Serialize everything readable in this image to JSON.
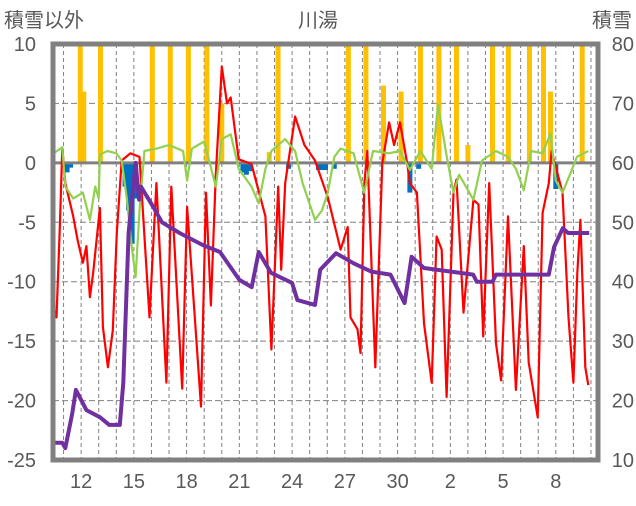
{
  "chart_data": {
    "type": "line",
    "title": "川湯",
    "left_axis_label": "積雪以外",
    "right_axis_label": "積雪",
    "x_range_days": [
      10.4,
      41.4
    ],
    "x_ticks": [
      {
        "day": 12,
        "label": "12"
      },
      {
        "day": 15,
        "label": "15"
      },
      {
        "day": 18,
        "label": "18"
      },
      {
        "day": 21,
        "label": "21"
      },
      {
        "day": 24,
        "label": "24"
      },
      {
        "day": 27,
        "label": "27"
      },
      {
        "day": 30,
        "label": "30"
      },
      {
        "day": 33,
        "label": "2"
      },
      {
        "day": 36,
        "label": "5"
      },
      {
        "day": 39,
        "label": "8"
      }
    ],
    "left_ylim": [
      -25,
      10
    ],
    "left_ticks": [
      "10",
      "5",
      "0",
      "-5",
      "-10",
      "-15",
      "-20",
      "-25"
    ],
    "right_ylim": [
      10,
      80
    ],
    "right_ticks": [
      "80",
      "70",
      "60",
      "50",
      "40",
      "30",
      "20",
      "10"
    ],
    "grid": true,
    "colors": {
      "red": "#ff0000",
      "green": "#92d050",
      "purple": "#7030a0",
      "orange": "#ffc000",
      "blue": "#0070c0",
      "frame": "#808080"
    },
    "series": [
      {
        "name": "red-line",
        "axis": "left",
        "color": "#ff0000",
        "points": [
          [
            10.42,
            -12.1
          ],
          [
            10.6,
            -13
          ],
          [
            10.8,
            -5
          ],
          [
            10.93,
            1.3
          ],
          [
            11.1,
            -1.7
          ],
          [
            11.55,
            -4.5
          ],
          [
            11.8,
            -6.5
          ],
          [
            12.1,
            -8.4
          ],
          [
            12.3,
            -7
          ],
          [
            12.5,
            -11.3
          ],
          [
            12.68,
            -9.3
          ],
          [
            13.07,
            -3.8
          ],
          [
            13.24,
            -13.8
          ],
          [
            13.52,
            -17.2
          ],
          [
            13.8,
            -14.1
          ],
          [
            14.03,
            -5.9
          ],
          [
            14.31,
            0.2
          ],
          [
            14.8,
            0.8
          ],
          [
            15.32,
            0.5
          ],
          [
            15.89,
            -13
          ],
          [
            16.28,
            -1.7
          ],
          [
            16.85,
            -18.5
          ],
          [
            17.13,
            -2
          ],
          [
            17.75,
            -19
          ],
          [
            18.03,
            -3.7
          ],
          [
            18.82,
            -20.5
          ],
          [
            19.1,
            -2.5
          ],
          [
            19.38,
            -12
          ],
          [
            19.66,
            -1
          ],
          [
            20.0,
            8.1
          ],
          [
            20.3,
            5
          ],
          [
            20.51,
            5.5
          ],
          [
            20.96,
            0.3
          ],
          [
            21.69,
            -0.1
          ],
          [
            22.48,
            -4.5
          ],
          [
            22.82,
            -15.7
          ],
          [
            23.21,
            -2
          ],
          [
            23.38,
            -9
          ],
          [
            23.61,
            -1.7
          ],
          [
            24.17,
            3.9
          ],
          [
            24.7,
            1.5
          ],
          [
            25.3,
            0.2
          ],
          [
            26.03,
            -2.9
          ],
          [
            26.76,
            -7.3
          ],
          [
            27.16,
            -5.4
          ],
          [
            27.32,
            -13
          ],
          [
            27.72,
            -14
          ],
          [
            27.89,
            -16
          ],
          [
            28.11,
            -1.7
          ],
          [
            28.28,
            1
          ],
          [
            28.73,
            -17.2
          ],
          [
            29.13,
            0
          ],
          [
            29.52,
            3.4
          ],
          [
            29.8,
            1.5
          ],
          [
            30.14,
            3.4
          ],
          [
            30.54,
            0
          ],
          [
            30.7,
            -1.7
          ],
          [
            31.1,
            -2.5
          ],
          [
            31.5,
            -13.5
          ],
          [
            31.94,
            -18.5
          ],
          [
            32.22,
            -6.2
          ],
          [
            32.51,
            -7.3
          ],
          [
            32.79,
            -19.7
          ],
          [
            33.18,
            -2.5
          ],
          [
            33.35,
            -1.4
          ],
          [
            33.75,
            -12.6
          ],
          [
            34.31,
            -3.1
          ],
          [
            34.6,
            -3.5
          ],
          [
            34.87,
            -14.6
          ],
          [
            35.21,
            -1.7
          ],
          [
            35.6,
            -15.2
          ],
          [
            35.89,
            -18.3
          ],
          [
            36.28,
            -4.5
          ],
          [
            36.73,
            -19.1
          ],
          [
            37.18,
            -7
          ],
          [
            37.46,
            -16.8
          ],
          [
            37.97,
            -21.4
          ],
          [
            38.25,
            -4.2
          ],
          [
            38.6,
            -1.7
          ],
          [
            38.76,
            1
          ],
          [
            39.38,
            -2.5
          ],
          [
            39.72,
            -13
          ],
          [
            40.0,
            -18.5
          ],
          [
            40.22,
            -9.3
          ],
          [
            40.4,
            -4.8
          ],
          [
            40.68,
            -17.2
          ],
          [
            40.85,
            -18.7
          ]
        ]
      },
      {
        "name": "green-line",
        "axis": "left",
        "color": "#92d050",
        "points": [
          [
            10.42,
            0.8
          ],
          [
            10.93,
            1.3
          ],
          [
            11.1,
            -2
          ],
          [
            11.55,
            -3
          ],
          [
            12.1,
            -2.5
          ],
          [
            12.5,
            -4.8
          ],
          [
            12.8,
            -2
          ],
          [
            13.0,
            -3
          ],
          [
            13.07,
            0.7
          ],
          [
            13.5,
            1
          ],
          [
            14.0,
            0.8
          ],
          [
            14.31,
            0.2
          ],
          [
            14.6,
            -3
          ],
          [
            14.9,
            -7.3
          ],
          [
            15.1,
            -9.6
          ],
          [
            15.32,
            -4
          ],
          [
            15.6,
            1
          ],
          [
            16.3,
            1.2
          ],
          [
            17,
            1.5
          ],
          [
            17.8,
            1
          ],
          [
            18.03,
            -1.5
          ],
          [
            18.3,
            1.2
          ],
          [
            19,
            1.8
          ],
          [
            19.66,
            -2
          ],
          [
            20.0,
            2
          ],
          [
            20.51,
            2.4
          ],
          [
            20.96,
            -0.5
          ],
          [
            21.69,
            -2
          ],
          [
            22.1,
            -3.4
          ],
          [
            22.48,
            -0.5
          ],
          [
            22.82,
            1
          ],
          [
            23.6,
            2
          ],
          [
            24.17,
            1
          ],
          [
            24.6,
            -1.7
          ],
          [
            25.3,
            -4.8
          ],
          [
            25.7,
            -4
          ],
          [
            26.03,
            -2.5
          ],
          [
            26.4,
            0.5
          ],
          [
            26.76,
            1.2
          ],
          [
            27.5,
            0.8
          ],
          [
            28.1,
            -2.5
          ],
          [
            28.6,
            1
          ],
          [
            29.5,
            0.8
          ],
          [
            30.14,
            1
          ],
          [
            30.7,
            -0.6
          ],
          [
            31.3,
            1
          ],
          [
            31.94,
            -0.5
          ],
          [
            32.3,
            4.9
          ],
          [
            32.8,
            0.5
          ],
          [
            33.18,
            -2.5
          ],
          [
            33.5,
            -1
          ],
          [
            34.31,
            -3.1
          ],
          [
            34.8,
            0.2
          ],
          [
            35.6,
            1
          ],
          [
            36.28,
            0.5
          ],
          [
            36.73,
            -0.5
          ],
          [
            37.18,
            -2.3
          ],
          [
            37.6,
            1
          ],
          [
            38.25,
            0.8
          ],
          [
            38.7,
            2.5
          ],
          [
            39.0,
            -1.5
          ],
          [
            39.38,
            -2.5
          ],
          [
            39.8,
            -1
          ],
          [
            40.2,
            0.5
          ],
          [
            40.85,
            1
          ]
        ]
      },
      {
        "name": "snow-depth-line",
        "axis": "right",
        "color": "#7030a0",
        "points": [
          [
            10.42,
            12.9
          ],
          [
            10.93,
            12.9
          ],
          [
            11.1,
            12
          ],
          [
            11.5,
            17.9
          ],
          [
            11.7,
            21.8
          ],
          [
            12.3,
            18.4
          ],
          [
            13.07,
            17.2
          ],
          [
            13.6,
            15.9
          ],
          [
            14.2,
            15.9
          ],
          [
            14.4,
            23
          ],
          [
            14.7,
            48.2
          ],
          [
            15.1,
            60
          ],
          [
            15.3,
            53.8
          ],
          [
            15.4,
            56
          ],
          [
            16.1,
            52.6
          ],
          [
            16.6,
            50
          ],
          [
            17.6,
            48.2
          ],
          [
            18.9,
            46.2
          ],
          [
            19.9,
            45
          ],
          [
            21.0,
            40.3
          ],
          [
            21.7,
            39.1
          ],
          [
            22.1,
            45
          ],
          [
            22.8,
            41.5
          ],
          [
            24.0,
            39.8
          ],
          [
            24.3,
            36.9
          ],
          [
            25.3,
            36.1
          ],
          [
            25.6,
            42
          ],
          [
            26.5,
            44.8
          ],
          [
            27.5,
            43.1
          ],
          [
            28.5,
            41.7
          ],
          [
            29.6,
            41.2
          ],
          [
            30.4,
            36.4
          ],
          [
            30.8,
            44.2
          ],
          [
            31.5,
            42.3
          ],
          [
            34.3,
            41.2
          ],
          [
            34.5,
            40
          ],
          [
            35.4,
            40
          ],
          [
            35.6,
            41.2
          ],
          [
            38.6,
            41.2
          ],
          [
            38.9,
            45.8
          ],
          [
            39.4,
            49
          ],
          [
            39.7,
            48.2
          ],
          [
            40.9,
            48.2
          ]
        ]
      }
    ],
    "bars": [
      {
        "name": "orange-bars",
        "axis": "left",
        "color": "#ffc000",
        "points": [
          [
            11.95,
            10
          ],
          [
            12.15,
            6
          ],
          [
            13.1,
            10
          ],
          [
            16.05,
            10
          ],
          [
            17.07,
            10
          ],
          [
            18.1,
            10
          ],
          [
            19.15,
            10
          ],
          [
            20.0,
            5
          ],
          [
            22.7,
            0.9
          ],
          [
            23.2,
            10
          ],
          [
            27.2,
            10
          ],
          [
            28.2,
            10
          ],
          [
            29.2,
            6.5
          ],
          [
            30.2,
            6
          ],
          [
            31.3,
            10
          ],
          [
            32.35,
            10
          ],
          [
            33.35,
            10
          ],
          [
            34.0,
            1.5
          ],
          [
            35.4,
            10
          ],
          [
            36.3,
            10
          ],
          [
            37.5,
            10
          ],
          [
            38.3,
            10
          ],
          [
            38.7,
            6
          ],
          [
            40.5,
            10
          ]
        ]
      },
      {
        "name": "blue-bars",
        "axis": "left",
        "color": "#0070c0",
        "points": [
          [
            11.2,
            -0.8
          ],
          [
            11.4,
            -0.4
          ],
          [
            14.5,
            -2
          ],
          [
            14.7,
            -4
          ],
          [
            14.9,
            -6.8
          ],
          [
            15.1,
            -3
          ],
          [
            21.2,
            -0.8
          ],
          [
            21.4,
            -1
          ],
          [
            21.6,
            -0.7
          ],
          [
            23.8,
            -0.5
          ],
          [
            25.5,
            -0.6
          ],
          [
            25.7,
            -0.6
          ],
          [
            25.9,
            -0.6
          ],
          [
            26.4,
            -0.5
          ],
          [
            30.7,
            -2.5
          ],
          [
            31.2,
            -0.5
          ],
          [
            39.0,
            -2.2
          ]
        ]
      }
    ]
  }
}
